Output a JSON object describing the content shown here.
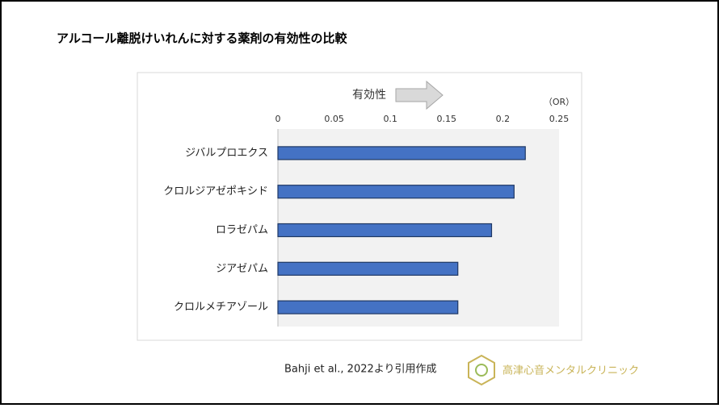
{
  "chart_data": {
    "type": "bar",
    "orientation": "horizontal",
    "title": "アルコール離脱けいれんに対する薬剤の有効性の比較",
    "annotation": "有効性",
    "unit_label": "（OR）",
    "categories": [
      "ジバルプロエクス",
      "クロルジアゼポキシド",
      "ロラゼパム",
      "ジアゼパム",
      "クロルメチアゾール"
    ],
    "values": [
      0.22,
      0.21,
      0.19,
      0.16,
      0.16
    ],
    "color": "#4472c4",
    "xlim": [
      0,
      0.25
    ],
    "xticks": [
      0,
      0.05,
      0.1,
      0.15,
      0.2,
      0.25
    ],
    "grid": false
  },
  "footer": {
    "source": "Bahji et al., 2022より引用作成",
    "logo_text": "高津心音メンタルクリニック"
  }
}
